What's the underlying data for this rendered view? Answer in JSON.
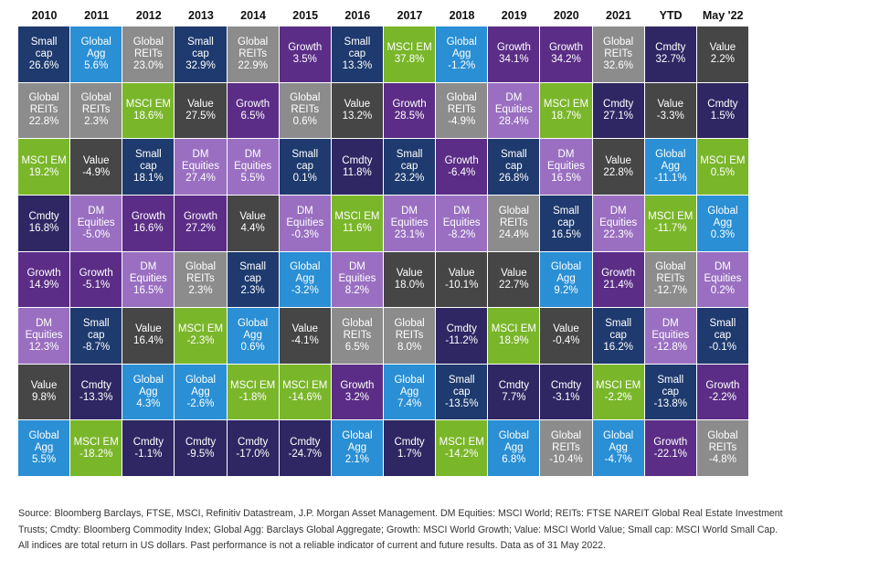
{
  "chart_data": {
    "type": "table",
    "title": "",
    "columns": [
      "2010",
      "2011",
      "2012",
      "2013",
      "2014",
      "2015",
      "2016",
      "2017",
      "2018",
      "2019",
      "2020",
      "2021",
      "YTD",
      "May '22"
    ],
    "colors": {
      "Small cap": "#1e3a6e",
      "Global Agg": "#2a8fd4",
      "Global REITs": "#8c8c8c",
      "MSCI EM": "#7ab62a",
      "Growth": "#5b2d86",
      "Value": "#464646",
      "DM Equities": "#9a6fc1",
      "Cmdty": "#2f2763"
    },
    "labels": {
      "Small cap": "Small\ncap",
      "Global Agg": "Global\nAgg",
      "Global REITs": "Global\nREITs",
      "MSCI EM": "MSCI EM",
      "Growth": "Growth",
      "Value": "Value",
      "DM Equities": "DM\nEquities",
      "Cmdty": "Cmdty"
    },
    "ranking": [
      [
        [
          "Small cap",
          "26.6%"
        ],
        [
          "Global REITs",
          "22.8%"
        ],
        [
          "MSCI EM",
          "19.2%"
        ],
        [
          "Cmdty",
          "16.8%"
        ],
        [
          "Growth",
          "14.9%"
        ],
        [
          "DM Equities",
          "12.3%"
        ],
        [
          "Value",
          "9.8%"
        ],
        [
          "Global Agg",
          "5.5%"
        ]
      ],
      [
        [
          "Global Agg",
          "5.6%"
        ],
        [
          "Global REITs",
          "2.3%"
        ],
        [
          "Value",
          "-4.9%"
        ],
        [
          "DM Equities",
          "-5.0%"
        ],
        [
          "Growth",
          "-5.1%"
        ],
        [
          "Small cap",
          "-8.7%"
        ],
        [
          "Cmdty",
          "-13.3%"
        ],
        [
          "MSCI EM",
          "-18.2%"
        ]
      ],
      [
        [
          "Global REITs",
          "23.0%"
        ],
        [
          "MSCI EM",
          "18.6%"
        ],
        [
          "Small cap",
          "18.1%"
        ],
        [
          "Growth",
          "16.6%"
        ],
        [
          "DM Equities",
          "16.5%"
        ],
        [
          "Value",
          "16.4%"
        ],
        [
          "Global Agg",
          "4.3%"
        ],
        [
          "Cmdty",
          "-1.1%"
        ]
      ],
      [
        [
          "Small cap",
          "32.9%"
        ],
        [
          "Value",
          "27.5%"
        ],
        [
          "DM Equities",
          "27.4%"
        ],
        [
          "Growth",
          "27.2%"
        ],
        [
          "Global REITs",
          "2.3%"
        ],
        [
          "MSCI EM",
          "-2.3%"
        ],
        [
          "Global Agg",
          "-2.6%"
        ],
        [
          "Cmdty",
          "-9.5%"
        ]
      ],
      [
        [
          "Global REITs",
          "22.9%"
        ],
        [
          "Growth",
          "6.5%"
        ],
        [
          "DM Equities",
          "5.5%"
        ],
        [
          "Value",
          "4.4%"
        ],
        [
          "Small cap",
          "2.3%"
        ],
        [
          "Global Agg",
          "0.6%"
        ],
        [
          "MSCI EM",
          "-1.8%"
        ],
        [
          "Cmdty",
          "-17.0%"
        ]
      ],
      [
        [
          "Growth",
          "3.5%"
        ],
        [
          "Global REITs",
          "0.6%"
        ],
        [
          "Small cap",
          "0.1%"
        ],
        [
          "DM Equities",
          "-0.3%"
        ],
        [
          "Global Agg",
          "-3.2%"
        ],
        [
          "Value",
          "-4.1%"
        ],
        [
          "MSCI EM",
          "-14.6%"
        ],
        [
          "Cmdty",
          "-24.7%"
        ]
      ],
      [
        [
          "Small cap",
          "13.3%"
        ],
        [
          "Value",
          "13.2%"
        ],
        [
          "Cmdty",
          "11.8%"
        ],
        [
          "MSCI EM",
          "11.6%"
        ],
        [
          "DM Equities",
          "8.2%"
        ],
        [
          "Global REITs",
          "6.5%"
        ],
        [
          "Growth",
          "3.2%"
        ],
        [
          "Global Agg",
          "2.1%"
        ]
      ],
      [
        [
          "MSCI EM",
          "37.8%"
        ],
        [
          "Growth",
          "28.5%"
        ],
        [
          "Small cap",
          "23.2%"
        ],
        [
          "DM Equities",
          "23.1%"
        ],
        [
          "Value",
          "18.0%"
        ],
        [
          "Global REITs",
          "8.0%"
        ],
        [
          "Global Agg",
          "7.4%"
        ],
        [
          "Cmdty",
          "1.7%"
        ]
      ],
      [
        [
          "Global Agg",
          "-1.2%"
        ],
        [
          "Global REITs",
          "-4.9%"
        ],
        [
          "Growth",
          "-6.4%"
        ],
        [
          "DM Equities",
          "-8.2%"
        ],
        [
          "Value",
          "-10.1%"
        ],
        [
          "Cmdty",
          "-11.2%"
        ],
        [
          "Small cap",
          "-13.5%"
        ],
        [
          "MSCI EM",
          "-14.2%"
        ]
      ],
      [
        [
          "Growth",
          "34.1%"
        ],
        [
          "DM Equities",
          "28.4%"
        ],
        [
          "Small cap",
          "26.8%"
        ],
        [
          "Global REITs",
          "24.4%"
        ],
        [
          "Value",
          "22.7%"
        ],
        [
          "MSCI EM",
          "18.9%"
        ],
        [
          "Cmdty",
          "7.7%"
        ],
        [
          "Global Agg",
          "6.8%"
        ]
      ],
      [
        [
          "Growth",
          "34.2%"
        ],
        [
          "MSCI EM",
          "18.7%"
        ],
        [
          "DM Equities",
          "16.5%"
        ],
        [
          "Small cap",
          "16.5%"
        ],
        [
          "Global Agg",
          "9.2%"
        ],
        [
          "Value",
          "-0.4%"
        ],
        [
          "Cmdty",
          "-3.1%"
        ],
        [
          "Global REITs",
          "-10.4%"
        ]
      ],
      [
        [
          "Global REITs",
          "32.6%"
        ],
        [
          "Cmdty",
          "27.1%"
        ],
        [
          "Value",
          "22.8%"
        ],
        [
          "DM Equities",
          "22.3%"
        ],
        [
          "Growth",
          "21.4%"
        ],
        [
          "Small cap",
          "16.2%"
        ],
        [
          "MSCI EM",
          "-2.2%"
        ],
        [
          "Global Agg",
          "-4.7%"
        ]
      ],
      [
        [
          "Cmdty",
          "32.7%"
        ],
        [
          "Value",
          "-3.3%"
        ],
        [
          "Global Agg",
          "-11.1%"
        ],
        [
          "MSCI EM",
          "-11.7%"
        ],
        [
          "Global REITs",
          "-12.7%"
        ],
        [
          "DM Equities",
          "-12.8%"
        ],
        [
          "Small cap",
          "-13.8%"
        ],
        [
          "Growth",
          "-22.1%"
        ]
      ],
      [
        [
          "Value",
          "2.2%"
        ],
        [
          "Cmdty",
          "1.5%"
        ],
        [
          "MSCI EM",
          "0.5%"
        ],
        [
          "Global Agg",
          "0.3%"
        ],
        [
          "DM Equities",
          "0.2%"
        ],
        [
          "Small cap",
          "-0.1%"
        ],
        [
          "Growth",
          "-2.2%"
        ],
        [
          "Global REITs",
          "-4.8%"
        ]
      ]
    ]
  },
  "source_lines": [
    "Source: Bloomberg Barclays, FTSE, MSCI, Refinitiv Datastream, J.P. Morgan Asset Management. DM Equities: MSCI World; REITs: FTSE NAREIT Global Real Estate Investment",
    "Trusts; Cmdty: Bloomberg Commodity Index; Global Agg: Barclays Global Aggregate; Growth: MSCI World Growth; Value: MSCI World Value; Small cap: MSCI World Small Cap.",
    "All indices are total return in US dollars. Past performance is not a reliable indicator of current and future results. Data as of 31 May 2022."
  ]
}
